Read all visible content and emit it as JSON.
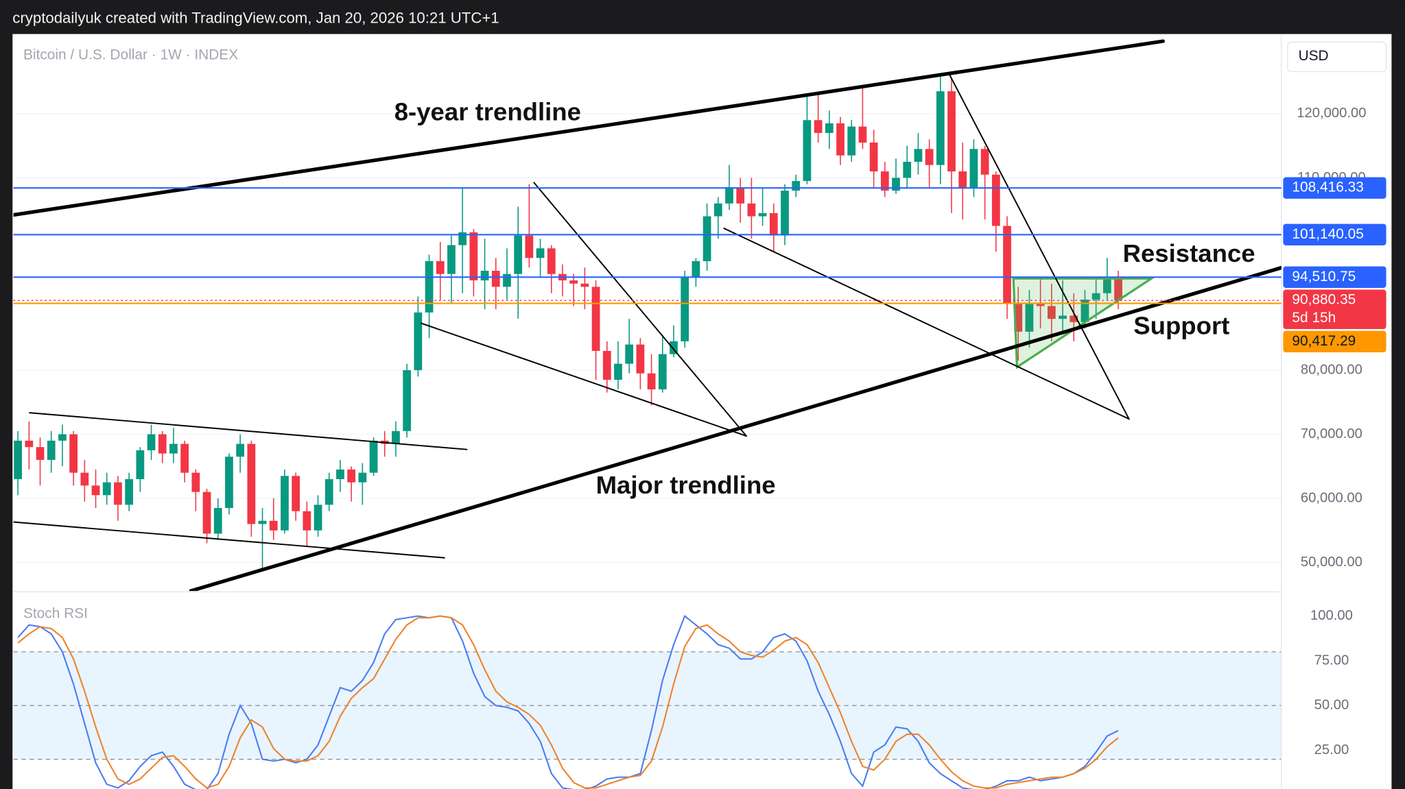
{
  "header": "cryptodailyuk created with TradingView.com, Jan 20, 2026 10:21 UTC+1",
  "chart_data": [
    {
      "type": "candlestick",
      "title": "Bitcoin / U.S. Dollar · 1W · INDEX",
      "currency": "USD",
      "categories": [
        null,
        null,
        null,
        null,
        null,
        null,
        null,
        null,
        null,
        null,
        null,
        null,
        null,
        null,
        null,
        null,
        null,
        null,
        null,
        null,
        null,
        null,
        null,
        null,
        null,
        null,
        null,
        null,
        null,
        null,
        null,
        null,
        null,
        null,
        null,
        null,
        null,
        null,
        null,
        null,
        null,
        null,
        null,
        null,
        null,
        null,
        null,
        null,
        null,
        null,
        null,
        null,
        null,
        null,
        null,
        null,
        null,
        null,
        null,
        null,
        null,
        null,
        null,
        null,
        null,
        null,
        null,
        null,
        null,
        null,
        null,
        null,
        null,
        null,
        null,
        null,
        null,
        null,
        null,
        null,
        null,
        null,
        null,
        null,
        null,
        null,
        null,
        null,
        null,
        null,
        null,
        null,
        null,
        null,
        null,
        null,
        null,
        null,
        null,
        null
      ],
      "open": [
        63000,
        69000,
        68000,
        66000,
        69000,
        70000,
        64000,
        62000,
        60500,
        62500,
        59000,
        63000,
        67500,
        70000,
        67000,
        68500,
        64000,
        61000,
        54500,
        58500,
        66500,
        68500,
        56000,
        56500,
        55000,
        63500,
        58000,
        55000,
        59000,
        63000,
        64500,
        62500,
        64000,
        69000,
        68500,
        70500,
        80000,
        89000,
        97000,
        95000,
        99500,
        101500,
        94000,
        95500,
        93000,
        95000,
        101000,
        97500,
        99000,
        95000,
        94000,
        93500,
        93000,
        83000,
        78500,
        81000,
        84000,
        79500,
        77000,
        82500,
        84500,
        94500,
        97000,
        104000,
        106000,
        108500,
        106000,
        104000,
        104500,
        101000,
        108000,
        109500,
        119000,
        117000,
        118500,
        113500,
        118000,
        115500,
        111000,
        108000,
        110000,
        112500,
        114500,
        112000,
        123500,
        111000,
        108500,
        114500,
        110500,
        102500,
        90500,
        86000,
        90500,
        90000,
        88000,
        88500,
        87500,
        91000,
        92000,
        94500
      ],
      "high": [
        70500,
        72000,
        69500,
        70500,
        71500,
        70500,
        66000,
        64500,
        64000,
        63500,
        64000,
        68000,
        71500,
        70500,
        71000,
        69000,
        64500,
        61500,
        60000,
        67000,
        70000,
        69000,
        58500,
        60000,
        64500,
        64000,
        59500,
        60500,
        64000,
        66000,
        65000,
        65500,
        69500,
        70500,
        72000,
        81000,
        91500,
        98000,
        100000,
        101000,
        108500,
        102000,
        100500,
        97500,
        99000,
        105500,
        109000,
        100500,
        99500,
        96500,
        95000,
        96000,
        94000,
        84500,
        84500,
        88000,
        85000,
        82500,
        85500,
        87000,
        95500,
        97500,
        106000,
        107000,
        112000,
        110000,
        110000,
        108500,
        106000,
        109000,
        110500,
        123000,
        123000,
        120500,
        119500,
        119000,
        124000,
        117500,
        112500,
        113000,
        115000,
        117000,
        116000,
        126000,
        125500,
        115500,
        116000,
        115000,
        111000,
        104000,
        93000,
        92500,
        94500,
        93500,
        94000,
        92000,
        92500,
        94500,
        97500,
        95500
      ],
      "low": [
        60500,
        64500,
        62000,
        64000,
        65000,
        62000,
        59500,
        58500,
        59000,
        56500,
        58000,
        61000,
        66000,
        65500,
        65500,
        62500,
        58000,
        53000,
        53500,
        57500,
        64000,
        54000,
        49000,
        53500,
        54500,
        56500,
        52500,
        54000,
        58000,
        61000,
        59500,
        59000,
        63500,
        66500,
        66500,
        69500,
        79000,
        85000,
        91000,
        90500,
        92000,
        91500,
        89500,
        89500,
        91000,
        88000,
        96000,
        94500,
        92000,
        91500,
        90000,
        89500,
        78500,
        76500,
        77000,
        79500,
        77000,
        74500,
        76500,
        82000,
        83500,
        93000,
        95500,
        100500,
        105000,
        103000,
        100500,
        102500,
        98500,
        99500,
        107000,
        109000,
        115500,
        114500,
        112000,
        112500,
        114500,
        108500,
        107000,
        107500,
        108500,
        110500,
        108500,
        109000,
        104500,
        103500,
        107000,
        103500,
        98500,
        88000,
        81500,
        83500,
        86500,
        84500,
        86000,
        84500,
        86500,
        88000,
        91000,
        89500
      ],
      "close": [
        69000,
        68000,
        66000,
        69000,
        70000,
        64000,
        62000,
        60500,
        62500,
        59000,
        63000,
        67500,
        70000,
        67000,
        68500,
        64000,
        61000,
        54500,
        58500,
        66500,
        68500,
        56000,
        56500,
        55000,
        63500,
        58000,
        55000,
        59000,
        63000,
        64500,
        62500,
        64000,
        69000,
        68500,
        70500,
        80000,
        89000,
        97000,
        95000,
        99500,
        101500,
        94000,
        95500,
        93000,
        95000,
        101000,
        97500,
        99000,
        95000,
        94000,
        93500,
        93000,
        83000,
        78500,
        81000,
        84000,
        79500,
        77000,
        82500,
        84500,
        94500,
        97000,
        104000,
        106000,
        108500,
        106000,
        104000,
        104500,
        101000,
        108000,
        109500,
        119000,
        117000,
        118500,
        113500,
        118000,
        115500,
        111000,
        108000,
        110000,
        112500,
        114500,
        112000,
        123500,
        111000,
        108500,
        114500,
        110500,
        102500,
        90500,
        86000,
        90500,
        90000,
        88000,
        88500,
        87500,
        91000,
        92000,
        94500,
        90880.35
      ],
      "up_color": "#089981",
      "down_color": "#f23645",
      "ylim": [
        45560,
        132150
      ],
      "yticks": [
        {
          "value": 50000,
          "label": "50,000.00"
        },
        {
          "value": 60000,
          "label": "60,000.00"
        },
        {
          "value": 70000,
          "label": "70,000.00"
        },
        {
          "value": 80000,
          "label": "80,000.00"
        },
        {
          "value": 110000,
          "label": "110,000.00"
        },
        {
          "value": 120000,
          "label": "120,000.00"
        }
      ],
      "grid": true,
      "price_lines": [
        {
          "value": 108416.33,
          "label": "108,416.33",
          "color": "#2962ff"
        },
        {
          "value": 101140.05,
          "label": "101,140.05",
          "color": "#2962ff"
        },
        {
          "value": 94510.75,
          "label": "94,510.75",
          "color": "#2962ff"
        },
        {
          "value": 90880.35,
          "label": "90,880.35",
          "countdown": "5d 15h",
          "color": "#f23645"
        },
        {
          "value": 90417.29,
          "label": "90,417.29",
          "color": "#ff9800"
        }
      ],
      "annotations": [
        "8-year trendline",
        "Major trendline",
        "Resistance",
        "Support"
      ]
    },
    {
      "type": "line",
      "title": "Stoch RSI",
      "categories": [
        null,
        null,
        null,
        null,
        null,
        null,
        null,
        null,
        null,
        null,
        null,
        null,
        null,
        null,
        null,
        null,
        null,
        null,
        null,
        null,
        null,
        null,
        null,
        null,
        null,
        null,
        null,
        null,
        null,
        null,
        null,
        null,
        null,
        null,
        null,
        null,
        null,
        null,
        null,
        null,
        null,
        null,
        null,
        null,
        null,
        null,
        null,
        null,
        null,
        null,
        null,
        null,
        null,
        null,
        null,
        null,
        null,
        null,
        null,
        null,
        null,
        null,
        null,
        null,
        null,
        null,
        null,
        null,
        null,
        null,
        null,
        null,
        null,
        null,
        null,
        null,
        null,
        null,
        null,
        null,
        null,
        null,
        null,
        null,
        null,
        null,
        null,
        null,
        null,
        null,
        null,
        null,
        null,
        null,
        null,
        null,
        null,
        null,
        null,
        null
      ],
      "series": [
        {
          "color": "#4a7cf0",
          "values": [
            88,
            95,
            94,
            90,
            80,
            62,
            40,
            18,
            6,
            4,
            8,
            16,
            22,
            24,
            16,
            6,
            3,
            3,
            12,
            34,
            50,
            40,
            20,
            19,
            20,
            18,
            20,
            28,
            44,
            60,
            58,
            64,
            74,
            90,
            98,
            99,
            100,
            99,
            100,
            99,
            86,
            68,
            55,
            50,
            49,
            47,
            40,
            30,
            12,
            4,
            3,
            3,
            5,
            9,
            10,
            10,
            12,
            36,
            64,
            84,
            100,
            95,
            90,
            84,
            82,
            76,
            76,
            80,
            88,
            90,
            86,
            75,
            58,
            45,
            30,
            12,
            5,
            24,
            28,
            38,
            37,
            30,
            18,
            12,
            8,
            4,
            3,
            3,
            5,
            8,
            8,
            10,
            8,
            9,
            10,
            12,
            16,
            24,
            33,
            36
          ]
        },
        {
          "color": "#f0822a",
          "values": [
            85,
            90,
            94,
            93,
            88,
            76,
            58,
            38,
            20,
            9,
            6,
            9,
            15,
            21,
            22,
            16,
            9,
            4,
            6,
            16,
            32,
            42,
            38,
            26,
            20,
            19,
            19,
            22,
            30,
            44,
            54,
            60,
            65,
            76,
            87,
            95,
            99,
            99,
            100,
            99,
            95,
            84,
            70,
            58,
            52,
            49,
            45,
            39,
            28,
            15,
            7,
            4,
            4,
            6,
            8,
            10,
            11,
            19,
            38,
            62,
            83,
            93,
            95,
            90,
            86,
            80,
            78,
            77,
            81,
            86,
            88,
            84,
            74,
            60,
            46,
            30,
            16,
            14,
            20,
            30,
            34,
            34,
            28,
            20,
            13,
            8,
            5,
            4,
            4,
            6,
            7,
            8,
            9,
            10,
            10,
            12,
            15,
            20,
            27,
            32
          ]
        }
      ],
      "ylim": [
        3.5,
        113
      ],
      "yticks": [
        {
          "value": 25,
          "label": "25.00"
        },
        {
          "value": 50,
          "label": "50.00"
        },
        {
          "value": 75,
          "label": "75.00"
        },
        {
          "value": 100,
          "label": "100.00"
        }
      ],
      "levels": [
        20,
        50,
        80
      ]
    }
  ]
}
